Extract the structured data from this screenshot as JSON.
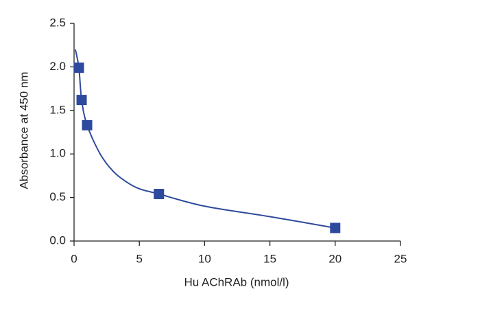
{
  "chart_data": {
    "type": "scatter",
    "x_label": "Hu AChRAb (nmol/l)",
    "y_label": "Absorbance at 450 nm",
    "xlim": [
      0,
      25
    ],
    "xticks": [
      0,
      5,
      10,
      15,
      20,
      25
    ],
    "ylim": [
      0,
      2.5
    ],
    "yticks": [
      {
        "value": 0,
        "label": "0.0"
      },
      0.5,
      {
        "value": 1,
        "label": "1.0"
      },
      1.5,
      {
        "value": 2,
        "label": "2.0"
      },
      2.5
    ],
    "points": {
      "color": "#2e4a9e",
      "marker": "square",
      "x": [
        0.37,
        0.58,
        1.0,
        6.5,
        20.0
      ],
      "values": [
        1.99,
        1.62,
        1.33,
        0.54,
        0.15
      ]
    },
    "curve": {
      "color": "#2e4a9e",
      "x": [
        0.1,
        0.37,
        0.58,
        1.0,
        2,
        3,
        4,
        5,
        6.5,
        10,
        15,
        20
      ],
      "values": [
        2.2,
        1.99,
        1.62,
        1.33,
        1.0,
        0.8,
        0.68,
        0.6,
        0.54,
        0.4,
        0.28,
        0.15
      ]
    }
  }
}
